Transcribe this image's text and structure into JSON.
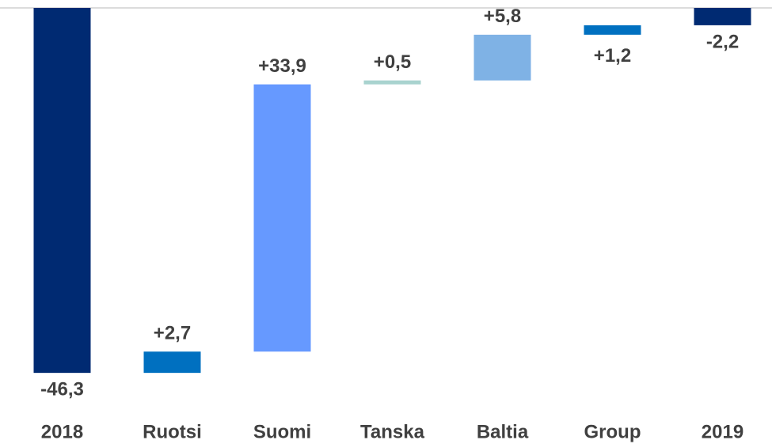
{
  "chart_data": {
    "type": "waterfall",
    "categories": [
      "2018",
      "Ruotsi",
      "Suomi",
      "Tanska",
      "Baltia",
      "Group",
      "2019"
    ],
    "values": [
      -46.3,
      2.7,
      33.9,
      0.5,
      5.8,
      1.2,
      -2.2
    ],
    "value_labels": [
      "-46,3",
      "+2,7",
      "+33,9",
      "+0,5",
      "+5,8",
      "+1,2",
      "-2,2"
    ],
    "colors": [
      "#002a72",
      "#0070c0",
      "#6699ff",
      "#a9d3cf",
      "#7fb2e5",
      "#0070c0",
      "#002a72"
    ],
    "ylim": [
      -50,
      0
    ]
  }
}
